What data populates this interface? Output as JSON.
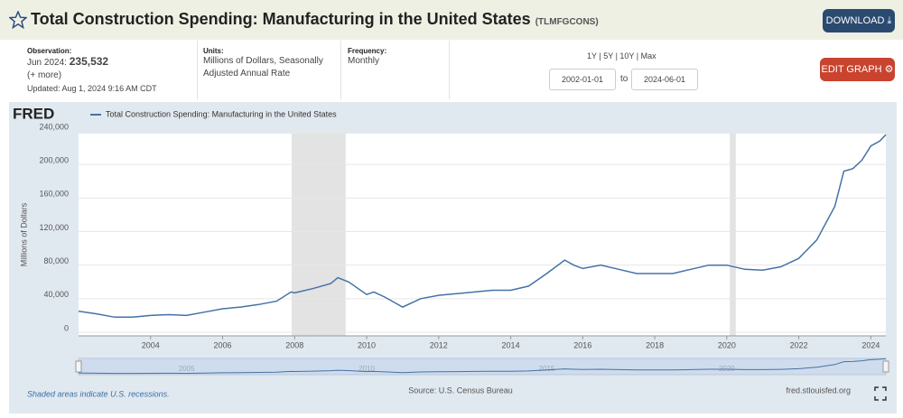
{
  "header": {
    "title": "Total Construction Spending: Manufacturing in the United States",
    "series_id": "(TLMFGCONS)",
    "download": "DOWNLOAD"
  },
  "info": {
    "observation_label": "Observation:",
    "observation_date": "Jun 2024:",
    "observation_value": "235,532",
    "more": "(+ more)",
    "updated": "Updated: Aug 1, 2024 9:16 AM CDT",
    "units_label": "Units:",
    "units": "Millions of Dollars, Seasonally Adjusted Annual Rate",
    "frequency_label": "Frequency:",
    "frequency": "Monthly",
    "ranges": [
      "1Y",
      "5Y",
      "10Y",
      "Max"
    ],
    "start": "2002-01-01",
    "to": "to",
    "end": "2024-06-01",
    "edit": "EDIT GRAPH"
  },
  "chart_data": {
    "type": "line",
    "logo": "FRED",
    "ylabel": "Millions of Dollars",
    "grid": true,
    "series": [
      {
        "name": "Total Construction Spending: Manufacturing in the United States",
        "color": "#4572a7",
        "values": [
          25000,
          22000,
          18000,
          18000,
          20000,
          21000,
          20000,
          24000,
          28000,
          30000,
          33000,
          37000,
          48000,
          47000,
          52000,
          58000,
          65000,
          60000,
          45000,
          48000,
          42000,
          30000,
          40000,
          44000,
          46000,
          48000,
          50000,
          50000,
          55000,
          70000,
          86000,
          80000,
          76000,
          80000,
          75000,
          70000,
          70000,
          70000,
          75000,
          80000,
          80000,
          75000,
          74000,
          78000,
          88000,
          110000,
          150000,
          192000,
          195000,
          205000,
          222000,
          228000,
          235532
        ]
      }
    ],
    "x": [
      2002,
      2002.5,
      2003,
      2003.5,
      2004,
      2004.5,
      2005,
      2005.5,
      2006,
      2006.5,
      2007,
      2007.5,
      2007.9,
      2008,
      2008.5,
      2009,
      2009.2,
      2009.5,
      2010,
      2010.2,
      2010.5,
      2011,
      2011.5,
      2012,
      2012.5,
      2013,
      2013.5,
      2014,
      2014.5,
      2015,
      2015.5,
      2015.75,
      2016,
      2016.5,
      2017,
      2017.5,
      2018,
      2018.5,
      2019,
      2019.5,
      2020,
      2020.5,
      2021,
      2021.5,
      2022,
      2022.5,
      2023,
      2023.25,
      2023.5,
      2023.75,
      2024,
      2024.25,
      2024.417
    ],
    "xlim": [
      2002,
      2024.417
    ],
    "xticks": [
      2004,
      2006,
      2008,
      2010,
      2012,
      2014,
      2016,
      2018,
      2020,
      2022,
      2024
    ],
    "ylim": [
      0,
      240000
    ],
    "yticks": [
      0,
      {
        "value": 40000,
        "label": "40,000"
      },
      {
        "value": 80000,
        "label": "80,000"
      },
      {
        "value": 120000,
        "label": "120,000"
      },
      {
        "value": 160000,
        "label": "160,000"
      },
      {
        "value": 200000,
        "label": "200,000"
      },
      {
        "value": 240000,
        "label": "240,000"
      }
    ],
    "recessions": [
      [
        2007.917,
        2009.417
      ],
      [
        2020.083,
        2020.25
      ]
    ],
    "navigator_ticks": [
      2005,
      2010,
      2015,
      2020
    ]
  },
  "footer": {
    "recession_note": "Shaded areas indicate U.S. recessions.",
    "source": "Source: U.S. Census Bureau",
    "site": "fred.stlouisfed.org"
  }
}
